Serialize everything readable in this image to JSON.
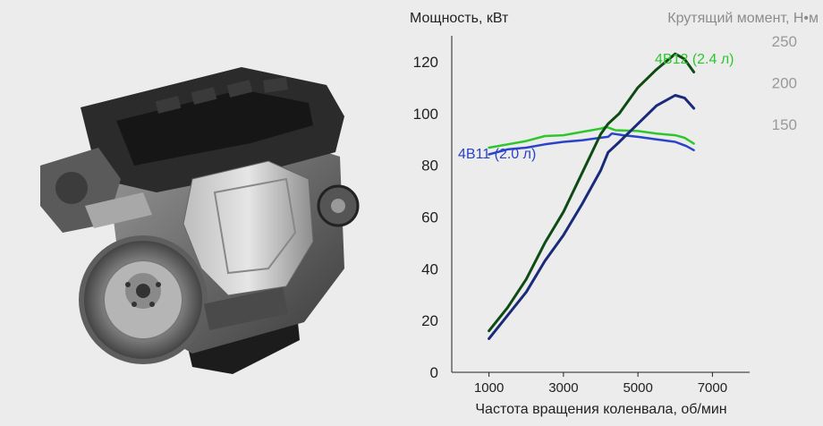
{
  "image": {
    "illustration": "engine-illustration"
  },
  "chart_data": {
    "type": "line",
    "xlabel": "Частота вращения коленвала, об/мин",
    "ylabel_left": "Мощность, кВт",
    "ylabel_right": "Крутящий момент, Н•м",
    "x_ticks": [
      "1000",
      "3000",
      "5000",
      "7000"
    ],
    "x_range": [
      0,
      8000
    ],
    "y_left_ticks": [
      "0",
      "20",
      "40",
      "60",
      "80",
      "100",
      "120"
    ],
    "y_left_range": [
      0,
      130
    ],
    "y_right_ticks": [
      "150",
      "200",
      "250"
    ],
    "grid": false,
    "series": [
      {
        "name": "4B12 (2.4 л)",
        "label": "4B12 (2.4 л)",
        "quantity": "torque",
        "color": "#2dc72d",
        "points": [
          [
            1000,
            122
          ],
          [
            1500,
            126
          ],
          [
            2000,
            130
          ],
          [
            2500,
            136
          ],
          [
            3000,
            137
          ],
          [
            3500,
            141
          ],
          [
            4000,
            145
          ],
          [
            4150,
            147
          ],
          [
            4400,
            143
          ],
          [
            5000,
            142
          ],
          [
            5500,
            139
          ],
          [
            6000,
            137
          ],
          [
            6250,
            134
          ],
          [
            6500,
            127
          ]
        ]
      },
      {
        "name": "4B11 (2.0 л)",
        "label": "4B11 (2.0 л)",
        "quantity": "torque",
        "color": "#2a44c8",
        "points": [
          [
            1000,
            114
          ],
          [
            1500,
            120
          ],
          [
            2000,
            122
          ],
          [
            2500,
            126
          ],
          [
            3000,
            129
          ],
          [
            3500,
            131
          ],
          [
            4000,
            134
          ],
          [
            4200,
            135
          ],
          [
            4300,
            139
          ],
          [
            4600,
            137
          ],
          [
            5000,
            135
          ],
          [
            5500,
            132
          ],
          [
            6000,
            129
          ],
          [
            6300,
            124
          ],
          [
            6500,
            119
          ]
        ]
      },
      {
        "name": "4B12 (2.4 л)",
        "quantity": "power",
        "color": "#0e4a14",
        "points": [
          [
            1000,
            16
          ],
          [
            1500,
            25
          ],
          [
            2000,
            36
          ],
          [
            2500,
            50
          ],
          [
            3000,
            62
          ],
          [
            3500,
            77
          ],
          [
            4000,
            92
          ],
          [
            4200,
            96
          ],
          [
            4500,
            100
          ],
          [
            5000,
            110
          ],
          [
            5500,
            117
          ],
          [
            6000,
            123
          ],
          [
            6250,
            121
          ],
          [
            6500,
            116
          ]
        ]
      },
      {
        "name": "4B11 (2.0 л)",
        "quantity": "power",
        "color": "#1a2a7a",
        "points": [
          [
            1000,
            13
          ],
          [
            1500,
            22
          ],
          [
            2000,
            31
          ],
          [
            2500,
            43
          ],
          [
            3000,
            53
          ],
          [
            3500,
            65
          ],
          [
            4000,
            78
          ],
          [
            4200,
            85
          ],
          [
            4500,
            89
          ],
          [
            5000,
            96
          ],
          [
            5500,
            103
          ],
          [
            6000,
            107
          ],
          [
            6250,
            106
          ],
          [
            6500,
            102
          ]
        ]
      }
    ]
  }
}
